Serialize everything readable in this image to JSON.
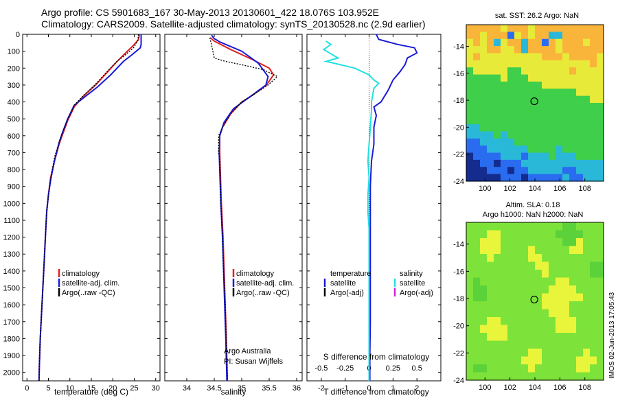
{
  "titles": {
    "line1": "Argo profile: CS 5901683_167 30-May-2013 20130601_422 18.076S 103.952E",
    "line2": "Climatology: CARS2009. Satellite-adjusted climatology: synTS_20130528.nc (2.9d earlier)"
  },
  "colors": {
    "climatology": "#e02020",
    "satellite": "#1a1ad8",
    "argo": "#000000",
    "sat_salinity": "#22e0e0",
    "argo_adj_salinity": "#d020d0"
  },
  "chart_data": [
    {
      "type": "line",
      "name": "temperature-profile",
      "xlabel": "temperature (deg C)",
      "xlim": [
        -1,
        31
      ],
      "xticks": [
        0,
        5,
        10,
        15,
        20,
        25,
        30
      ],
      "ylim": [
        2050,
        0
      ],
      "yticks": [
        0,
        100,
        200,
        300,
        400,
        500,
        600,
        700,
        800,
        900,
        1000,
        1100,
        1200,
        1300,
        1400,
        1500,
        1600,
        1700,
        1800,
        1900,
        2000
      ],
      "legend": [
        "climatology",
        "satellite-adj. clim.",
        "Argo(..raw -QC)"
      ],
      "series": [
        {
          "name": "climatology",
          "color": "#e02020",
          "points": [
            [
              26.2,
              0
            ],
            [
              26,
              30
            ],
            [
              25,
              60
            ],
            [
              23,
              110
            ],
            [
              21,
              160
            ],
            [
              18.5,
              230
            ],
            [
              16,
              300
            ],
            [
              13,
              370
            ],
            [
              11,
              430
            ],
            [
              9.5,
              510
            ],
            [
              8.2,
              600
            ],
            [
              7.5,
              650
            ],
            [
              6.4,
              750
            ],
            [
              5.5,
              850
            ],
            [
              5,
              950
            ],
            [
              4.6,
              1050
            ],
            [
              4.3,
              1200
            ],
            [
              4,
              1350
            ],
            [
              3.7,
              1500
            ],
            [
              3.4,
              1650
            ],
            [
              3.1,
              1800
            ],
            [
              2.9,
              1950
            ],
            [
              2.8,
              2050
            ]
          ]
        },
        {
          "name": "satellite-adj. clim.",
          "color": "#1a1ad8",
          "points": [
            [
              26.6,
              0
            ],
            [
              26.6,
              60
            ],
            [
              26.4,
              80
            ],
            [
              24.5,
              120
            ],
            [
              22.5,
              160
            ],
            [
              19.5,
              240
            ],
            [
              16.5,
              310
            ],
            [
              13.5,
              370
            ],
            [
              11,
              420
            ],
            [
              9.5,
              500
            ],
            [
              8.3,
              580
            ],
            [
              7.5,
              640
            ],
            [
              6.4,
              750
            ],
            [
              5.6,
              850
            ],
            [
              5,
              950
            ],
            [
              4.6,
              1050
            ],
            [
              4.3,
              1200
            ],
            [
              4,
              1350
            ],
            [
              3.7,
              1500
            ],
            [
              3.4,
              1650
            ],
            [
              3.1,
              1800
            ],
            [
              2.9,
              1950
            ],
            [
              2.8,
              2050
            ]
          ]
        },
        {
          "name": "Argo(..raw -QC)",
          "color": "#000000",
          "dashed": true,
          "points": [
            [
              26,
              0
            ],
            [
              25.8,
              40
            ],
            [
              24.8,
              80
            ],
            [
              23,
              120
            ],
            [
              21,
              160
            ],
            [
              18.3,
              230
            ],
            [
              15.8,
              300
            ],
            [
              13.2,
              360
            ],
            [
              11,
              420
            ],
            [
              9.4,
              510
            ],
            [
              8.3,
              580
            ],
            [
              7.6,
              630
            ],
            [
              7,
              680
            ],
            [
              6.5,
              720
            ],
            [
              5.9,
              800
            ],
            [
              5.4,
              870
            ],
            [
              5.1,
              940
            ],
            [
              4.8,
              1000
            ],
            [
              4.6,
              1050
            ],
            [
              4.3,
              1200
            ],
            [
              4,
              1350
            ],
            [
              3.7,
              1500
            ],
            [
              3.4,
              1650
            ],
            [
              3.1,
              1800
            ],
            [
              2.9,
              1950
            ],
            [
              2.8,
              2050
            ]
          ]
        }
      ]
    },
    {
      "type": "line",
      "name": "salinity-profile",
      "xlabel": "salinity",
      "xlim": [
        33.6,
        36.1
      ],
      "xticks": [
        34,
        34.5,
        35,
        35.5,
        36
      ],
      "ylim": [
        2050,
        0
      ],
      "legend": [
        "climatology",
        "satellite-adj. clim.",
        "Argo(..raw -QC)"
      ],
      "annotation": [
        "Argo Australia",
        "PI: Susan Wijffels"
      ],
      "series": [
        {
          "name": "climatology",
          "color": "#e02020",
          "points": [
            [
              34.43,
              20
            ],
            [
              34.5,
              40
            ],
            [
              34.8,
              90
            ],
            [
              35.2,
              150
            ],
            [
              35.5,
              200
            ],
            [
              35.58,
              240
            ],
            [
              35.45,
              300
            ],
            [
              35.2,
              360
            ],
            [
              35,
              400
            ],
            [
              34.8,
              470
            ],
            [
              34.65,
              550
            ],
            [
              34.6,
              600
            ],
            [
              34.6,
              700
            ],
            [
              34.61,
              800
            ],
            [
              34.63,
              1000
            ],
            [
              34.66,
              1200
            ],
            [
              34.68,
              1400
            ],
            [
              34.7,
              1600
            ],
            [
              34.72,
              1800
            ],
            [
              34.74,
              2050
            ]
          ]
        },
        {
          "name": "satellite-adj. clim.",
          "color": "#1a1ad8",
          "points": [
            [
              34.45,
              5
            ],
            [
              34.5,
              25
            ],
            [
              34.6,
              45
            ],
            [
              35,
              100
            ],
            [
              35.3,
              170
            ],
            [
              35.48,
              250
            ],
            [
              35.44,
              300
            ],
            [
              35.15,
              370
            ],
            [
              34.85,
              440
            ],
            [
              34.68,
              520
            ],
            [
              34.6,
              600
            ],
            [
              34.59,
              700
            ],
            [
              34.6,
              800
            ],
            [
              34.62,
              1000
            ],
            [
              34.65,
              1200
            ],
            [
              34.67,
              1400
            ],
            [
              34.69,
              1600
            ],
            [
              34.71,
              1800
            ],
            [
              34.73,
              2050
            ]
          ]
        },
        {
          "name": "Argo(..raw -QC)",
          "color": "#000000",
          "dashed": true,
          "points": [
            [
              34.42,
              20
            ],
            [
              34.45,
              60
            ],
            [
              34.5,
              140
            ],
            [
              34.7,
              160
            ],
            [
              35,
              180
            ],
            [
              35.4,
              210
            ],
            [
              35.65,
              250
            ],
            [
              35.48,
              300
            ],
            [
              35.2,
              360
            ],
            [
              35,
              400
            ],
            [
              34.8,
              470
            ],
            [
              34.65,
              550
            ],
            [
              34.58,
              600
            ],
            [
              34.58,
              700
            ],
            [
              34.6,
              750
            ],
            [
              34.62,
              1000
            ],
            [
              34.65,
              1200
            ],
            [
              34.67,
              1400
            ],
            [
              34.7,
              1600
            ],
            [
              34.72,
              1800
            ],
            [
              34.74,
              2050
            ]
          ]
        }
      ]
    },
    {
      "type": "line",
      "name": "difference-profile",
      "xlabel_bottom": "T difference from climatology",
      "xlabel_top": "S difference from climatology",
      "xlim_T": [
        -2.6,
        3
      ],
      "xticks_T": [
        -2,
        -1,
        0,
        1,
        2
      ],
      "xticks_S": [
        -0.5,
        -0.25,
        0,
        0.25,
        0.5
      ],
      "legend_temperature": {
        "heading": "temperature",
        "items": [
          "satellite",
          "Argo(-adj)"
        ]
      },
      "legend_salinity": {
        "heading": "salinity",
        "items": [
          "satellite",
          "Argo(-adj)"
        ]
      },
      "series": [
        {
          "name": "temperature satellite",
          "color": "#1a1ad8",
          "points": [
            [
              0.3,
              0
            ],
            [
              0.4,
              30
            ],
            [
              1.2,
              60
            ],
            [
              1.9,
              80
            ],
            [
              2,
              110
            ],
            [
              1.6,
              140
            ],
            [
              1.5,
              180
            ],
            [
              1.3,
              220
            ],
            [
              1,
              270
            ],
            [
              0.8,
              330
            ],
            [
              0.5,
              400
            ],
            [
              0.2,
              430
            ],
            [
              0.3,
              480
            ],
            [
              0.2,
              550
            ],
            [
              0.2,
              650
            ],
            [
              0.1,
              750
            ],
            [
              0.05,
              900
            ],
            [
              0.05,
              1100
            ],
            [
              0.05,
              1300
            ],
            [
              0.05,
              1500
            ],
            [
              0.05,
              1700
            ],
            [
              0.03,
              1900
            ],
            [
              0.03,
              2050
            ]
          ]
        },
        {
          "name": "salinity satellite",
          "color": "#22e0e0",
          "points": [
            [
              -1.8,
              40
            ],
            [
              -1.6,
              60
            ],
            [
              -1.9,
              90
            ],
            [
              -1.3,
              140
            ],
            [
              -1.8,
              160
            ],
            [
              -0.6,
              200
            ],
            [
              0,
              240
            ],
            [
              0.2,
              270
            ],
            [
              0.4,
              290
            ],
            [
              0.2,
              320
            ],
            [
              0.1,
              400
            ],
            [
              0.1,
              450
            ],
            [
              0.05,
              550
            ],
            [
              0,
              650
            ],
            [
              -0.05,
              750
            ],
            [
              0,
              850
            ],
            [
              -0.05,
              950
            ],
            [
              -0.05,
              1050
            ],
            [
              0,
              1150
            ],
            [
              0,
              1300
            ],
            [
              0,
              1500
            ],
            [
              0,
              1700
            ],
            [
              0,
              1900
            ],
            [
              0,
              2050
            ]
          ]
        }
      ]
    }
  ],
  "maps": {
    "sst": {
      "title": "sat. SST: 26.2 Argo: NaN",
      "lon_ticks": [
        100,
        102,
        104,
        106,
        108
      ],
      "lat_ticks": [
        -14,
        -16,
        -18,
        -20,
        -22,
        -24
      ],
      "lon_range": [
        98.5,
        109.5
      ],
      "lat_range": [
        -24,
        -12.4
      ],
      "marker_lon": 103.952,
      "marker_lat": -18.076,
      "grid": [
        "OOOOOYOOOYOOOOOOOOOO",
        "OOYOOOBYOYOOCCOOOOOO",
        "YOYOCYOOCOOBOYOOOYOO",
        "YYYOOYYOCOOOOYOOOOOO",
        "YOYYYYYYYYYOOOYOOOOY",
        "YYYYYYYYYYYYYYYYYYOY",
        "GYYYYYGGYYYYYYYOYYYY",
        "GGGGGYGGGYYYYYYYYYYY",
        "GGGGGGGGGGGYYYYYYYYY",
        "GGGGGGGGGGGGGGGGYYYY",
        "GGGGGGGGGGGGGGGGGGYY",
        "GGGGGGGGGGGGGGGGGGGG",
        "GGGGGGGGGGGGGGGGGGGG",
        "GGGGGGGGGGGGGGGGGGGG",
        "CCGGGGGGGGGGGGGGGGGG",
        "CCCCGCGGGGGGGGGGGGGG",
        "BBCCCCCGGGGGGGGGGGGG",
        "BBBCCCCCCGGGGCGGGGGG",
        "DBBBBCCCBCCCGCCCGGGG",
        "DDBBDBBBCCCCCCCCCCCC",
        "DDDBBBDBBCCCCCBBCCCC",
        "DDDDDBBBDBBBBBCBBCCC"
      ]
    },
    "sla": {
      "title_line1": "Altim. SLA: 0.18",
      "title_line2": "Argo h1000: NaN h2000: NaN",
      "lon_ticks": [
        100,
        102,
        104,
        106,
        108
      ],
      "lat_ticks": [
        -14,
        -16,
        -18,
        -20,
        -22,
        -24
      ],
      "lon_range": [
        98.5,
        109.5
      ],
      "lat_range": [
        -24,
        -12.4
      ],
      "marker_lon": 103.952,
      "marker_lat": -18.076,
      "grid": [
        "GGGGGGGGGGGGGGLLGGGG",
        "GGGYYGGGGGGGGLLLLGGG",
        "GGYYYGGGGGGGGGLLYGGG",
        "GGYYYGGGGYGGGGGYYGGG",
        "GGGYGGGGGYYGGGGGGGGG",
        "GGGGGGGGGGYYGGGGGGLL",
        "GGGGGGGGGGGYGGGGGGLL",
        "GLGGGGGGGGGGGYYGGGGG",
        "GLLGGGGGGGGGYYYYGGGG",
        "GLLGGGGGGGGYYYYYYGGG",
        "GGGGGGGGGGGYYYYGGGGG",
        "GGGGGGGGGGGGYYYGGGGG",
        "GGGYYGGGGGGGGYYYGGGG",
        "GGYYYYGGGGGGGYYYGGGG",
        "GGGYYYGGGGGGGGGGGGGG",
        "GGGGGGGGGGGGGGGGGGGG",
        "GGGGGGGGGYYGGGGGGYGG",
        "GGGGGGGGYYYGGGGGYYYG",
        "GLLGGGGGGYGGGGGGYYGG",
        "GGGGGGGGGGGGGGGGGGGG"
      ]
    }
  },
  "credit": "IMOS 02-Jun-2013 17:05:43"
}
